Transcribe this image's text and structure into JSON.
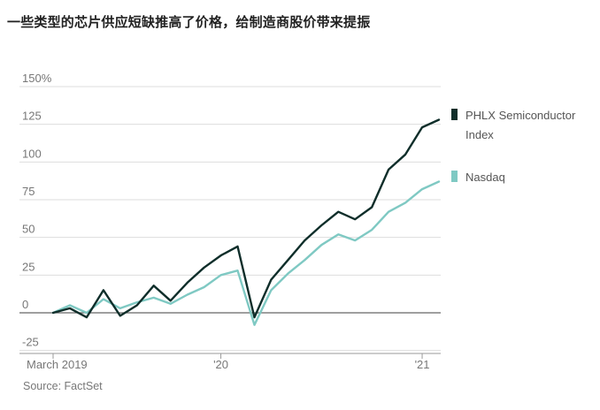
{
  "title": "一些类型的芯片供应短缺推高了价格，给制造商股价带来提振",
  "source": "Source: FactSet",
  "colors": {
    "semiconductor": "#0f2e2a",
    "nasdaq": "#7fc9c3",
    "grid": "#dddddd",
    "zero": "#666666"
  },
  "chart_data": {
    "type": "line",
    "ylim": [
      -25,
      150
    ],
    "ytick_labels": [
      "150%",
      "125",
      "100",
      "75",
      "50",
      "25",
      "0",
      "-25"
    ],
    "ytick_values": [
      150,
      125,
      100,
      75,
      50,
      25,
      0,
      -25
    ],
    "x_tick_labels": [
      "March 2019",
      "'20",
      "'21"
    ],
    "x_tick_values": [
      "2019-03",
      "2020-01",
      "2021-01"
    ],
    "grid": true,
    "legend_placement": "right",
    "series": [
      {
        "name": "PHLX Semiconductor Index",
        "x": [
          "2019-03",
          "2019-04",
          "2019-05",
          "2019-06",
          "2019-07",
          "2019-08",
          "2019-09",
          "2019-10",
          "2019-11",
          "2019-12",
          "2020-01",
          "2020-02",
          "2020-03",
          "2020-04",
          "2020-05",
          "2020-06",
          "2020-07",
          "2020-08",
          "2020-09",
          "2020-10",
          "2020-11",
          "2020-12",
          "2021-01",
          "2021-02"
        ],
        "values": [
          0,
          3,
          -3,
          15,
          -2,
          5,
          18,
          8,
          20,
          30,
          38,
          44,
          -3,
          22,
          35,
          48,
          58,
          67,
          62,
          70,
          95,
          105,
          123,
          128
        ]
      },
      {
        "name": "Nasdaq",
        "x": [
          "2019-03",
          "2019-04",
          "2019-05",
          "2019-06",
          "2019-07",
          "2019-08",
          "2019-09",
          "2019-10",
          "2019-11",
          "2019-12",
          "2020-01",
          "2020-02",
          "2020-03",
          "2020-04",
          "2020-05",
          "2020-06",
          "2020-07",
          "2020-08",
          "2020-09",
          "2020-10",
          "2020-11",
          "2020-12",
          "2021-01",
          "2021-02"
        ],
        "values": [
          0,
          5,
          0,
          9,
          3,
          7,
          10,
          6,
          12,
          17,
          25,
          28,
          -8,
          15,
          26,
          35,
          45,
          52,
          48,
          55,
          67,
          73,
          82,
          87
        ]
      }
    ]
  }
}
